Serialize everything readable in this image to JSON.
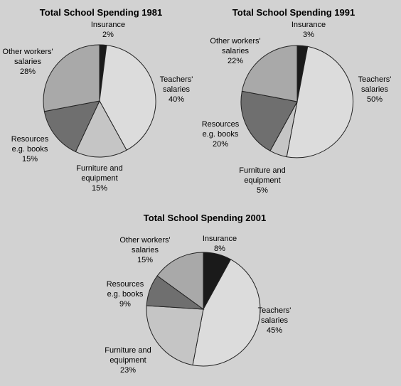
{
  "chart_data": [
    {
      "type": "pie",
      "title": "Total School Spending 1981",
      "slices": [
        {
          "label_lines": [
            "Insurance",
            "2%"
          ],
          "value": 2,
          "color": "#1a1a1a"
        },
        {
          "label_lines": [
            "Teachers'",
            "salaries",
            "40%"
          ],
          "value": 40,
          "color": "#dcdcdc"
        },
        {
          "label_lines": [
            "Furniture and",
            "equipment",
            "15%"
          ],
          "value": 15,
          "color": "#c5c5c5"
        },
        {
          "label_lines": [
            "Resources",
            "e.g. books",
            "15%"
          ],
          "value": 15,
          "color": "#6f6f6f"
        },
        {
          "label_lines": [
            "Other workers'",
            "salaries",
            "28%"
          ],
          "value": 28,
          "color": "#a9a9a9"
        }
      ]
    },
    {
      "type": "pie",
      "title": "Total School Spending 1991",
      "slices": [
        {
          "label_lines": [
            "Insurance",
            "3%"
          ],
          "value": 3,
          "color": "#1a1a1a"
        },
        {
          "label_lines": [
            "Teachers'",
            "salaries",
            "50%"
          ],
          "value": 50,
          "color": "#dcdcdc"
        },
        {
          "label_lines": [
            "Furniture and",
            "equipment",
            "5%"
          ],
          "value": 5,
          "color": "#c5c5c5"
        },
        {
          "label_lines": [
            "Resources",
            "e.g. books",
            "20%"
          ],
          "value": 20,
          "color": "#6f6f6f"
        },
        {
          "label_lines": [
            "Other workers'",
            "salaries",
            "22%"
          ],
          "value": 22,
          "color": "#a9a9a9"
        }
      ]
    },
    {
      "type": "pie",
      "title": "Total School Spending 2001",
      "slices": [
        {
          "label_lines": [
            "Insurance",
            "8%"
          ],
          "value": 8,
          "color": "#1a1a1a"
        },
        {
          "label_lines": [
            "Teachers'",
            "salaries",
            "45%"
          ],
          "value": 45,
          "color": "#dcdcdc"
        },
        {
          "label_lines": [
            "Furniture and",
            "equipment",
            "23%"
          ],
          "value": 23,
          "color": "#c5c5c5"
        },
        {
          "label_lines": [
            "Resources",
            "e.g. books",
            "9%"
          ],
          "value": 9,
          "color": "#6f6f6f"
        },
        {
          "label_lines": [
            "Other workers'",
            "salaries",
            "15%"
          ],
          "value": 15,
          "color": "#a9a9a9"
        }
      ]
    }
  ]
}
